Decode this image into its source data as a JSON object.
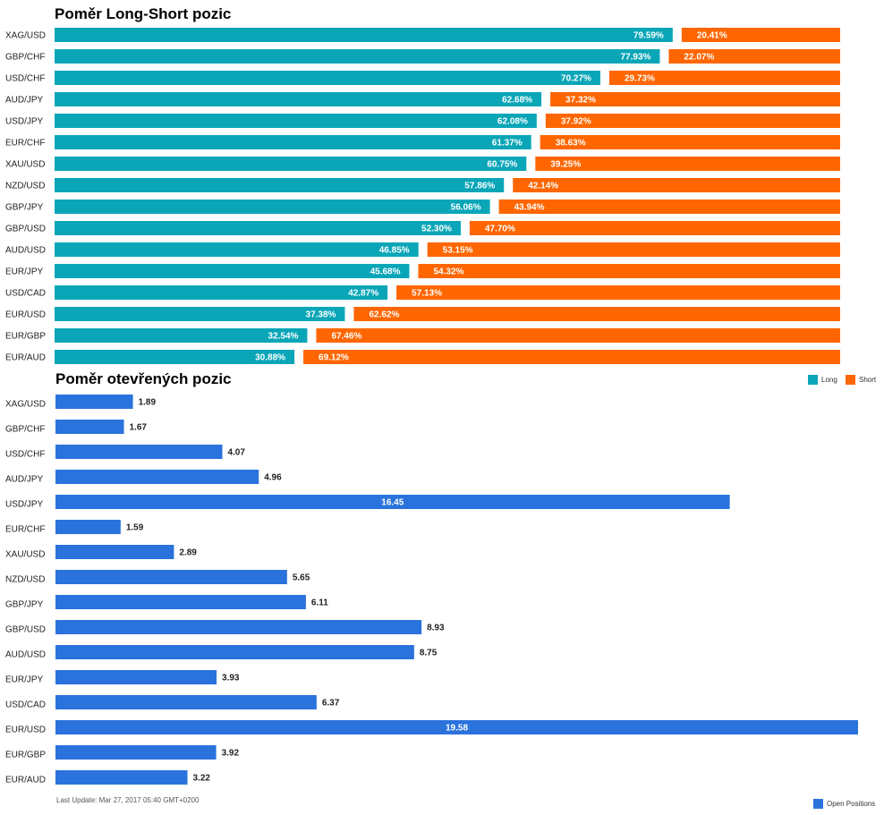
{
  "chart_data": [
    {
      "type": "bar",
      "orientation": "horizontal",
      "stacked": true,
      "title": "Poměr Long-Short pozic",
      "categories": [
        "XAG/USD",
        "GBP/CHF",
        "USD/CHF",
        "AUD/JPY",
        "USD/JPY",
        "EUR/CHF",
        "XAU/USD",
        "NZD/USD",
        "GBP/JPY",
        "GBP/USD",
        "AUD/USD",
        "EUR/JPY",
        "USD/CAD",
        "EUR/USD",
        "EUR/GBP",
        "EUR/AUD"
      ],
      "series": [
        {
          "name": "Long",
          "color": "#0aa6b8",
          "values": [
            79.59,
            77.93,
            70.27,
            62.68,
            62.08,
            61.37,
            60.75,
            57.86,
            56.06,
            52.3,
            46.85,
            45.68,
            42.87,
            37.38,
            32.54,
            30.88
          ],
          "labels": [
            "79.59%",
            "77.93%",
            "70.27%",
            "62.68%",
            "62.08%",
            "61.37%",
            "60.75%",
            "57.86%",
            "56.06%",
            "52.30%",
            "46.85%",
            "45.68%",
            "42.87%",
            "37.38%",
            "32.54%",
            "30.88%"
          ]
        },
        {
          "name": "Short",
          "color": "#ff6600",
          "values": [
            20.41,
            22.07,
            29.73,
            37.32,
            37.92,
            38.63,
            39.25,
            42.14,
            43.94,
            47.7,
            53.15,
            54.32,
            57.13,
            62.62,
            67.46,
            69.12
          ],
          "labels": [
            "20.41%",
            "22.07%",
            "29.73%",
            "37.32%",
            "37.92%",
            "38.63%",
            "39.25%",
            "42.14%",
            "43.94%",
            "47.70%",
            "53.15%",
            "54.32%",
            "57.13%",
            "62.62%",
            "67.46%",
            "69.12%"
          ]
        }
      ],
      "xlim": [
        0,
        100
      ],
      "legend": "right"
    },
    {
      "type": "bar",
      "orientation": "horizontal",
      "title": "Poměr otevřených pozic",
      "categories": [
        "XAG/USD",
        "GBP/CHF",
        "USD/CHF",
        "AUD/JPY",
        "USD/JPY",
        "EUR/CHF",
        "XAU/USD",
        "NZD/USD",
        "GBP/JPY",
        "GBP/USD",
        "AUD/USD",
        "EUR/JPY",
        "USD/CAD",
        "EUR/USD",
        "EUR/GBP",
        "EUR/AUD"
      ],
      "series": [
        {
          "name": "Open Positions",
          "color": "#2a72dc",
          "values": [
            1.89,
            1.67,
            4.07,
            4.96,
            16.45,
            1.59,
            2.89,
            5.65,
            6.11,
            8.93,
            8.75,
            3.93,
            6.37,
            19.58,
            3.92,
            3.22
          ],
          "labels": [
            "1.89",
            "1.67",
            "4.07",
            "4.96",
            "16.45",
            "1.59",
            "2.89",
            "5.65",
            "6.11",
            "8.93",
            "8.75",
            "3.93",
            "6.37",
            "19.58",
            "3.92",
            "3.22"
          ]
        }
      ],
      "xlim": [
        0,
        19.58
      ],
      "legend": "bottom-right"
    }
  ],
  "footer": "Last Update: Mar 27, 2017 05:40 GMT+0200"
}
